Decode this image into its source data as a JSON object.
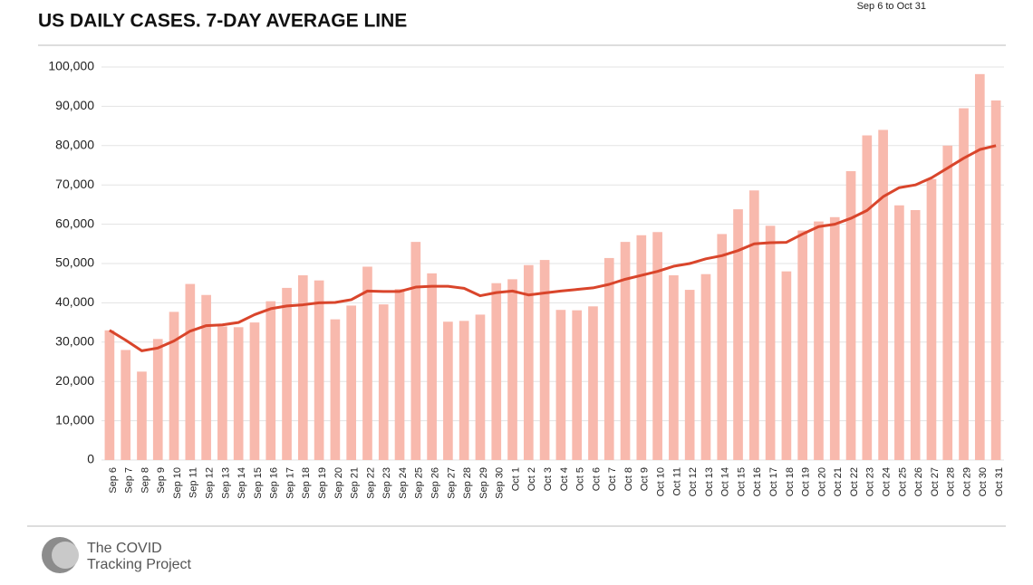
{
  "chart_data": {
    "type": "bar",
    "title": "US DAILY CASES. 7-DAY AVERAGE LINE",
    "subtitle": "Sep 6 to Oct 31",
    "categories": [
      "Sep 6",
      "Sep 7",
      "Sep 8",
      "Sep 9",
      "Sep 10",
      "Sep 11",
      "Sep 12",
      "Sep 13",
      "Sep 14",
      "Sep 15",
      "Sep 16",
      "Sep 17",
      "Sep 18",
      "Sep 19",
      "Sep 20",
      "Sep 21",
      "Sep 22",
      "Sep 23",
      "Sep 24",
      "Sep 25",
      "Sep 26",
      "Sep 27",
      "Sep 28",
      "Sep 29",
      "Sep 30",
      "Oct 1",
      "Oct 2",
      "Oct 3",
      "Oct 4",
      "Oct 5",
      "Oct 6",
      "Oct 7",
      "Oct 8",
      "Oct 9",
      "Oct 10",
      "Oct 11",
      "Oct 12",
      "Oct 13",
      "Oct 14",
      "Oct 15",
      "Oct 16",
      "Oct 17",
      "Oct 18",
      "Oct 19",
      "Oct 20",
      "Oct 21",
      "Oct 22",
      "Oct 23",
      "Oct 24",
      "Oct 25",
      "Oct 26",
      "Oct 27",
      "Oct 28",
      "Oct 29",
      "Oct 30",
      "Oct 31"
    ],
    "series": [
      {
        "type": "bar",
        "color": "#f8b9ad",
        "values": [
          33000,
          28000,
          22500,
          30800,
          37700,
          44800,
          42000,
          34000,
          33800,
          35000,
          40400,
          43800,
          47000,
          45700,
          35800,
          39300,
          49200,
          39600,
          43500,
          55500,
          47500,
          35200,
          35400,
          37000,
          45000,
          46000,
          49600,
          50900,
          38200,
          38100,
          39100,
          51400,
          55500,
          57200,
          58000,
          47000,
          43300,
          47300,
          57500,
          63800,
          68600,
          59600,
          48000,
          58400,
          60700,
          61800,
          73500,
          82600,
          84000,
          64800,
          63600,
          71500,
          80000,
          89500,
          98200,
          91500
        ]
      },
      {
        "type": "line",
        "color": "#d9452b",
        "values": [
          33000,
          30500,
          27800,
          28500,
          30300,
          32800,
          34200,
          34400,
          35000,
          37000,
          38500,
          39200,
          39500,
          40000,
          40100,
          40800,
          43000,
          42900,
          42900,
          44000,
          44200,
          44200,
          43700,
          41800,
          42600,
          43000,
          42000,
          42500,
          43000,
          43400,
          43800,
          44700,
          46000,
          47000,
          48000,
          49300,
          50000,
          51200,
          52000,
          53300,
          55000,
          55300,
          55400,
          57500,
          59400,
          60000,
          61500,
          63500,
          67000,
          69300,
          70000,
          71800,
          74300,
          76800,
          79000,
          80000
        ]
      }
    ],
    "ylim": [
      0,
      100000
    ],
    "yticks": [
      0,
      {
        "value": 10000,
        "label": "10,000"
      },
      {
        "value": 20000,
        "label": "20,000"
      },
      {
        "value": 30000,
        "label": "30,000"
      },
      {
        "value": 40000,
        "label": "40,000"
      },
      {
        "value": 50000,
        "label": "50,000"
      },
      {
        "value": 60000,
        "label": "60,000"
      },
      {
        "value": 70000,
        "label": "70,000"
      },
      {
        "value": 80000,
        "label": "80,000"
      },
      {
        "value": 90000,
        "label": "90,000"
      },
      {
        "value": 100000,
        "label": "100,000"
      }
    ],
    "grid": true
  },
  "footer": {
    "lines": [
      "The COVID",
      "Tracking Project"
    ]
  }
}
